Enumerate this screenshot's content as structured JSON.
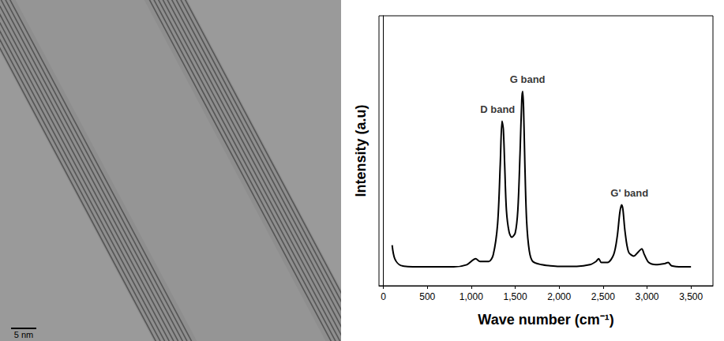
{
  "chart_data": {
    "type": "line",
    "xlabel": "Wave number (cm⁻¹)",
    "ylabel": "Intensity (a.u)",
    "xlim": [
      -50,
      3750
    ],
    "xticks": [
      0,
      500,
      1000,
      1500,
      2000,
      2500,
      3000,
      3500
    ],
    "ylim": [
      0,
      100
    ],
    "tick_labels": "x",
    "grid": false,
    "color": "#000000",
    "x": [
      100,
      130,
      200,
      400,
      600,
      800,
      950,
      1050,
      1100,
      1200,
      1250,
      1300,
      1330,
      1350,
      1365,
      1380,
      1400,
      1430,
      1460,
      1500,
      1530,
      1555,
      1575,
      1585,
      1595,
      1610,
      1630,
      1660,
      1700,
      1800,
      1900,
      2000,
      2200,
      2350,
      2420,
      2450,
      2480,
      2550,
      2620,
      2660,
      2690,
      2710,
      2725,
      2750,
      2790,
      2850,
      2900,
      2940,
      2970,
      3020,
      3100,
      3200,
      3240,
      3280,
      3400,
      3500
    ],
    "values": [
      15,
      10,
      7.5,
      7,
      7,
      7,
      7.8,
      10,
      9,
      9,
      11.5,
      23,
      45,
      61,
      58,
      45,
      28,
      20,
      18,
      19.5,
      28,
      49,
      69,
      72,
      66,
      45,
      24,
      13,
      9,
      7.8,
      7.4,
      7.2,
      7.2,
      7.8,
      9,
      10,
      8.6,
      8.6,
      11.5,
      18,
      27,
      30,
      28.5,
      20,
      12.5,
      11,
      12.5,
      13.7,
      11.5,
      8.6,
      7.8,
      8.2,
      8.6,
      7.4,
      7,
      7
    ],
    "annotations": [
      {
        "text": "D band",
        "x": 1300,
        "y": 63
      },
      {
        "text": "G band",
        "x": 1640,
        "y": 74
      },
      {
        "text": "G' band",
        "x": 2800,
        "y": 32
      }
    ]
  },
  "micrograph": {
    "scale_bar_label": "5 nm"
  }
}
